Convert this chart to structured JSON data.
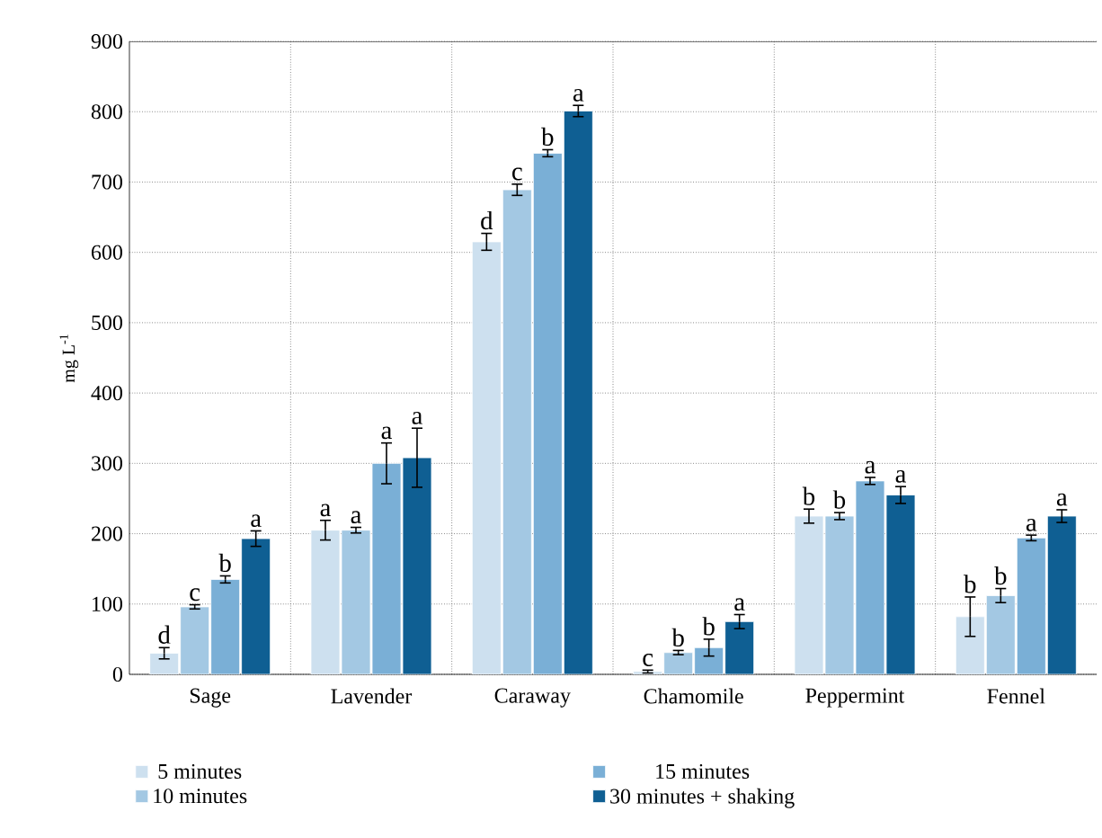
{
  "chart_data": {
    "type": "bar",
    "ylabel": "mg L$^{-1}$",
    "categories": [
      "Sage",
      "Lavender",
      "Caraway",
      "Chamomile",
      "Peppermint",
      "Fennel"
    ],
    "series": [
      {
        "name": "5 minutes",
        "color": "#cde0ef",
        "values": [
          30,
          205,
          615,
          4,
          225,
          82
        ],
        "errors": [
          8,
          14,
          12,
          2,
          10,
          28
        ],
        "value_labels": [
          "d",
          "a",
          "d",
          "c",
          "b",
          "b"
        ]
      },
      {
        "name": "10 minutes",
        "color": "#a3c8e3",
        "values": [
          96,
          205,
          689,
          31,
          225,
          112
        ],
        "errors": [
          3,
          4,
          8,
          3,
          5,
          10
        ],
        "value_labels": [
          "c",
          "a",
          "c",
          "b",
          "b",
          "b"
        ]
      },
      {
        "name": "15 minutes",
        "color": "#7aafd6",
        "values": [
          135,
          300,
          741,
          38,
          275,
          194
        ],
        "errors": [
          5,
          29,
          5,
          12,
          5,
          4
        ],
        "value_labels": [
          "b",
          "a",
          "b",
          "b",
          "a",
          "a"
        ]
      },
      {
        "name": "30 minutes + shaking",
        "color": "#0f5f93",
        "values": [
          193,
          308,
          801,
          75,
          255,
          225
        ],
        "errors": [
          11,
          42,
          8,
          10,
          12,
          9
        ],
        "value_labels": [
          "a",
          "a",
          "a",
          "a",
          "a",
          "a"
        ]
      }
    ],
    "ylim": [
      0,
      900
    ],
    "yticks": [
      0,
      100,
      200,
      300,
      400,
      500,
      600,
      700,
      800,
      900
    ],
    "grid": true,
    "legend": "bottom"
  }
}
